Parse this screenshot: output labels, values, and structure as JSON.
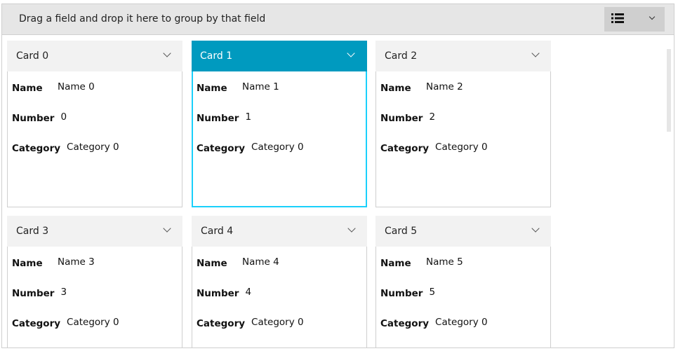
{
  "groupbar": {
    "text": "Drag a field and drop it here to group by that field",
    "view_icon": "list-icon",
    "dropdown_icon": "chevron-down-icon"
  },
  "labels": {
    "name": "Name",
    "number": "Number",
    "category": "Category"
  },
  "selected_color": "#009abf",
  "cards": [
    {
      "title": "Card 0",
      "name": "Name 0",
      "number": "0",
      "category": "Category 0",
      "selected": false
    },
    {
      "title": "Card 1",
      "name": "Name 1",
      "number": "1",
      "category": "Category 0",
      "selected": true
    },
    {
      "title": "Card 2",
      "name": "Name 2",
      "number": "2",
      "category": "Category 0",
      "selected": false
    },
    {
      "title": "Card 3",
      "name": "Name 3",
      "number": "3",
      "category": "Category 0",
      "selected": false
    },
    {
      "title": "Card 4",
      "name": "Name 4",
      "number": "4",
      "category": "Category 0",
      "selected": false
    },
    {
      "title": "Card 5",
      "name": "Name 5",
      "number": "5",
      "category": "Category 0",
      "selected": false
    }
  ]
}
